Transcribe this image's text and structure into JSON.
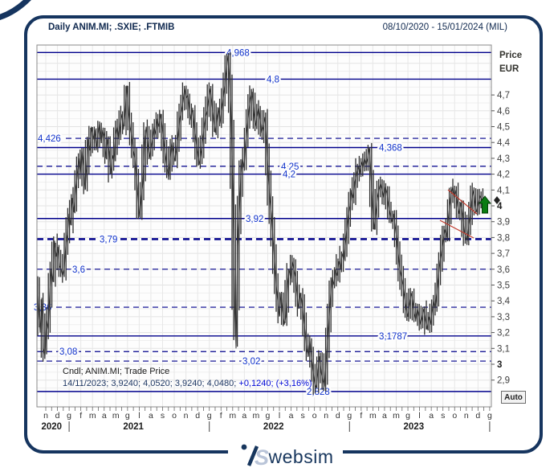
{
  "window": {
    "title": "Daily ANIM.MI; .SXIE; .FTMIB",
    "date_range": "08/10/2020 - 15/01/2024 (MIL)"
  },
  "axis": {
    "price_label": "Price",
    "currency_label": "EUR",
    "auto_label": "Auto"
  },
  "info": {
    "line1": "Cndl; ANIM.MI; Trade Price",
    "line2_main": "14/11/2023; 3,9240; 4,0520; 3,9240; 4,0480;",
    "line2_change": "+0,1240; (+3,16%)"
  },
  "footer": {
    "brand": "websim"
  },
  "colors": {
    "frame": "#16355f",
    "level_line": "#00008b",
    "level_label": "#1133cc",
    "candle": "#2e2e2e",
    "change_text": "#0008d7",
    "trend_line": "#c0392b",
    "signal_arrow": "#0b7c12"
  },
  "chart_data": {
    "type": "candlestick",
    "title": "Daily ANIM.MI; .SXIE; .FTMIB",
    "instrument": "ANIM.MI",
    "series_style": "Cndl",
    "price_field": "Trade Price",
    "period": "Daily",
    "date_range": "08/10/2020 - 15/01/2024",
    "exchange": "MIL",
    "ylabel": "Price EUR",
    "ylim": [
      2.82,
      4.99
    ],
    "grid": true,
    "ohlc_snapshot": {
      "date": "14/11/2023",
      "open": "3,9240",
      "high": "4,0520",
      "low": "3,9240",
      "close": "4,0480",
      "change": "+0,1240",
      "change_pct": "+3,16%"
    },
    "levels": [
      {
        "label": "4,968",
        "value": 4.968,
        "style": "solid",
        "label_x": 282
      },
      {
        "label": "4,8",
        "value": 4.8,
        "style": "solid",
        "label_x": 332
      },
      {
        "label": "4,426",
        "value": 4.426,
        "style": "dashed",
        "label_x": 47
      },
      {
        "label": "4,368",
        "value": 4.368,
        "style": "solid",
        "label_x": 472
      },
      {
        "label": "4,25",
        "value": 4.25,
        "style": "dashed",
        "label_x": 350
      },
      {
        "label": "4,2",
        "value": 4.2,
        "style": "solid",
        "label_x": 352
      },
      {
        "label": "3,92",
        "value": 3.92,
        "style": "solid",
        "label_x": 306
      },
      {
        "label": "3,79",
        "value": 3.79,
        "style": "dashed-bold",
        "label_x": 124
      },
      {
        "label": "3,6",
        "value": 3.6,
        "style": "dashed",
        "label_x": 90
      },
      {
        "label": "3,36",
        "value": 3.36,
        "style": "dashed",
        "label_x": 42
      },
      {
        "label": "3,1787",
        "value": 3.1787,
        "style": "solid",
        "label_x": 472
      },
      {
        "label": "3,08",
        "value": 3.08,
        "style": "dashed",
        "label_x": 74
      },
      {
        "label": "3,02",
        "value": 3.02,
        "style": "dashed",
        "label_x": 302
      },
      {
        "label": "2,828",
        "value": 2.828,
        "style": "solid",
        "label_x": 382
      }
    ],
    "y_axis": {
      "ticks": [
        "4,7",
        "4,6",
        "4,5",
        "4,4",
        "4,3",
        "4,2",
        "4,1",
        "4",
        "3,9",
        "3,8",
        "3,7",
        "3,6",
        "3,5",
        "3,4",
        "3,3",
        "3,2",
        "3,1",
        "3",
        "2,9"
      ]
    },
    "x_axis": {
      "months": [
        "n",
        "d",
        "g",
        "f",
        "m",
        "a",
        "m",
        "g",
        "l",
        "a",
        "s",
        "o",
        "n",
        "d",
        "g",
        "f",
        "m",
        "a",
        "m",
        "g",
        "l",
        "a",
        "s",
        "o",
        "n",
        "d",
        "g",
        "f",
        "m",
        "a",
        "m",
        "g",
        "l",
        "a",
        "s",
        "o",
        "n",
        "d",
        "g"
      ],
      "years": [
        {
          "label": "2020",
          "center_index": 0.5
        },
        {
          "label": "2021",
          "center_index": 7.5
        },
        {
          "label": "2022",
          "center_index": 19.5
        },
        {
          "label": "2023",
          "center_index": 31.5
        }
      ],
      "separator_indexes": [
        2,
        14,
        26,
        38
      ]
    },
    "annotations": {
      "trend_lines": [
        {
          "x1": 558,
          "y1": 236,
          "x2": 594,
          "y2": 266
        },
        {
          "x1": 548,
          "y1": 274,
          "x2": 590,
          "y2": 296
        }
      ],
      "signal_arrow": {
        "direction": "up",
        "x": 604,
        "y": 244
      },
      "last_price_marker": {
        "shape": "diamond",
        "x": 619,
        "y": 249
      }
    },
    "price_path": [
      [
        46,
        3.52
      ],
      [
        48,
        3.35
      ],
      [
        50,
        3.2
      ],
      [
        52,
        3.42
      ],
      [
        54,
        3.1
      ],
      [
        56,
        3.05
      ],
      [
        58,
        3.28
      ],
      [
        60,
        3.22
      ],
      [
        62,
        3.45
      ],
      [
        64,
        3.6
      ],
      [
        66,
        3.52
      ],
      [
        68,
        3.78
      ],
      [
        70,
        3.68
      ],
      [
        72,
        3.74
      ],
      [
        74,
        3.62
      ],
      [
        76,
        3.6
      ],
      [
        78,
        3.56
      ],
      [
        80,
        3.6
      ],
      [
        82,
        3.75
      ],
      [
        84,
        3.82
      ],
      [
        86,
        3.95
      ],
      [
        88,
        3.88
      ],
      [
        90,
        4.05
      ],
      [
        92,
        3.96
      ],
      [
        94,
        4.1
      ],
      [
        96,
        4.18
      ],
      [
        98,
        4.3
      ],
      [
        100,
        4.2
      ],
      [
        102,
        4.35
      ],
      [
        104,
        4.25
      ],
      [
        106,
        4.1
      ],
      [
        108,
        4.26
      ],
      [
        110,
        4.42
      ],
      [
        112,
        4.35
      ],
      [
        114,
        4.5
      ],
      [
        116,
        4.42
      ],
      [
        118,
        4.48
      ],
      [
        120,
        4.36
      ],
      [
        122,
        4.45
      ],
      [
        124,
        4.52
      ],
      [
        126,
        4.4
      ],
      [
        128,
        4.48
      ],
      [
        130,
        4.44
      ],
      [
        132,
        4.3
      ],
      [
        134,
        4.42
      ],
      [
        136,
        4.34
      ],
      [
        138,
        4.2
      ],
      [
        140,
        4.32
      ],
      [
        142,
        4.28
      ],
      [
        144,
        4.45
      ],
      [
        146,
        4.5
      ],
      [
        148,
        4.42
      ],
      [
        150,
        4.52
      ],
      [
        152,
        4.58
      ],
      [
        154,
        4.48
      ],
      [
        156,
        4.6
      ],
      [
        158,
        4.76
      ],
      [
        160,
        4.6
      ],
      [
        162,
        4.5
      ],
      [
        164,
        4.44
      ],
      [
        166,
        4.35
      ],
      [
        168,
        4.3
      ],
      [
        170,
        4.18
      ],
      [
        172,
        4.04
      ],
      [
        174,
        3.93
      ],
      [
        176,
        4.05
      ],
      [
        178,
        4.15
      ],
      [
        180,
        4.4
      ],
      [
        182,
        4.5
      ],
      [
        184,
        4.4
      ],
      [
        186,
        4.3
      ],
      [
        188,
        4.36
      ],
      [
        190,
        4.42
      ],
      [
        192,
        4.5
      ],
      [
        194,
        4.45
      ],
      [
        196,
        4.55
      ],
      [
        198,
        4.5
      ],
      [
        200,
        4.58
      ],
      [
        202,
        4.5
      ],
      [
        204,
        4.4
      ],
      [
        206,
        4.32
      ],
      [
        208,
        4.24
      ],
      [
        210,
        4.18
      ],
      [
        212,
        4.3
      ],
      [
        214,
        4.4
      ],
      [
        216,
        4.34
      ],
      [
        218,
        4.28
      ],
      [
        220,
        4.36
      ],
      [
        222,
        4.45
      ],
      [
        224,
        4.55
      ],
      [
        226,
        4.6
      ],
      [
        228,
        4.66
      ],
      [
        230,
        4.74
      ],
      [
        232,
        4.68
      ],
      [
        234,
        4.7
      ],
      [
        236,
        4.6
      ],
      [
        238,
        4.54
      ],
      [
        240,
        4.62
      ],
      [
        242,
        4.5
      ],
      [
        244,
        4.42
      ],
      [
        246,
        4.34
      ],
      [
        248,
        4.26
      ],
      [
        250,
        4.32
      ],
      [
        252,
        4.4
      ],
      [
        254,
        4.48
      ],
      [
        256,
        4.56
      ],
      [
        258,
        4.6
      ],
      [
        260,
        4.68
      ],
      [
        262,
        4.74
      ],
      [
        264,
        4.64
      ],
      [
        266,
        4.55
      ],
      [
        268,
        4.46
      ],
      [
        270,
        4.55
      ],
      [
        272,
        4.62
      ],
      [
        274,
        4.52
      ],
      [
        276,
        4.6
      ],
      [
        278,
        4.68
      ],
      [
        280,
        4.76
      ],
      [
        282,
        4.86
      ],
      [
        284,
        4.95
      ],
      [
        286,
        4.8
      ],
      [
        288,
        4.55
      ],
      [
        290,
        4.1
      ],
      [
        292,
        3.4
      ],
      [
        294,
        3.1
      ],
      [
        296,
        3.75
      ],
      [
        298,
        3.95
      ],
      [
        300,
        4.2
      ],
      [
        302,
        4.3
      ],
      [
        304,
        4.24
      ],
      [
        306,
        4.4
      ],
      [
        308,
        4.5
      ],
      [
        310,
        4.6
      ],
      [
        312,
        4.68
      ],
      [
        314,
        4.72
      ],
      [
        316,
        4.6
      ],
      [
        318,
        4.5
      ],
      [
        320,
        4.56
      ],
      [
        322,
        4.62
      ],
      [
        324,
        4.54
      ],
      [
        326,
        4.46
      ],
      [
        328,
        4.5
      ],
      [
        330,
        4.56
      ],
      [
        332,
        4.4
      ],
      [
        334,
        4.2
      ],
      [
        336,
        4.05
      ],
      [
        338,
        3.95
      ],
      [
        340,
        3.8
      ],
      [
        342,
        3.65
      ],
      [
        344,
        3.5
      ],
      [
        346,
        3.4
      ],
      [
        348,
        3.3
      ],
      [
        350,
        3.45
      ],
      [
        352,
        3.34
      ],
      [
        354,
        3.25
      ],
      [
        356,
        3.3
      ],
      [
        358,
        3.5
      ],
      [
        360,
        3.6
      ],
      [
        362,
        3.54
      ],
      [
        364,
        3.65
      ],
      [
        366,
        3.6
      ],
      [
        368,
        3.55
      ],
      [
        370,
        3.44
      ],
      [
        372,
        3.35
      ],
      [
        374,
        3.45
      ],
      [
        376,
        3.4
      ],
      [
        378,
        3.3
      ],
      [
        380,
        3.2
      ],
      [
        382,
        3.1
      ],
      [
        384,
        3.05
      ],
      [
        386,
        3.15
      ],
      [
        388,
        3.04
      ],
      [
        390,
        2.95
      ],
      [
        392,
        2.88
      ],
      [
        394,
        2.85
      ],
      [
        396,
        2.96
      ],
      [
        398,
        3.05
      ],
      [
        400,
        2.95
      ],
      [
        402,
        2.9
      ],
      [
        404,
        2.86
      ],
      [
        406,
        3.0
      ],
      [
        408,
        3.15
      ],
      [
        410,
        3.3
      ],
      [
        412,
        3.45
      ],
      [
        414,
        3.55
      ],
      [
        416,
        3.5
      ],
      [
        418,
        3.6
      ],
      [
        420,
        3.56
      ],
      [
        422,
        3.65
      ],
      [
        424,
        3.6
      ],
      [
        426,
        3.7
      ],
      [
        428,
        3.66
      ],
      [
        430,
        3.75
      ],
      [
        432,
        3.85
      ],
      [
        434,
        3.95
      ],
      [
        436,
        4.0
      ],
      [
        438,
        4.1
      ],
      [
        440,
        4.05
      ],
      [
        442,
        4.15
      ],
      [
        444,
        4.2
      ],
      [
        446,
        4.25
      ],
      [
        448,
        4.2
      ],
      [
        450,
        4.28
      ],
      [
        452,
        4.24
      ],
      [
        454,
        4.3
      ],
      [
        456,
        4.26
      ],
      [
        458,
        4.3
      ],
      [
        460,
        4.37
      ],
      [
        462,
        4.2
      ],
      [
        464,
        4.0
      ],
      [
        466,
        3.85
      ],
      [
        468,
        3.95
      ],
      [
        470,
        4.05
      ],
      [
        472,
        4.1
      ],
      [
        474,
        4.14
      ],
      [
        476,
        4.1
      ],
      [
        478,
        4.05
      ],
      [
        480,
        4.12
      ],
      [
        482,
        4.08
      ],
      [
        484,
        4.0
      ],
      [
        486,
        3.95
      ],
      [
        488,
        3.9
      ],
      [
        490,
        3.95
      ],
      [
        492,
        3.88
      ],
      [
        494,
        3.8
      ],
      [
        496,
        3.7
      ],
      [
        498,
        3.6
      ],
      [
        500,
        3.55
      ],
      [
        502,
        3.5
      ],
      [
        504,
        3.42
      ],
      [
        506,
        3.35
      ],
      [
        508,
        3.3
      ],
      [
        510,
        3.38
      ],
      [
        512,
        3.45
      ],
      [
        514,
        3.4
      ],
      [
        516,
        3.32
      ],
      [
        518,
        3.28
      ],
      [
        520,
        3.35
      ],
      [
        522,
        3.3
      ],
      [
        524,
        3.25
      ],
      [
        526,
        3.3
      ],
      [
        528,
        3.35
      ],
      [
        530,
        3.28
      ],
      [
        532,
        3.22
      ],
      [
        534,
        3.3
      ],
      [
        536,
        3.25
      ],
      [
        538,
        3.32
      ],
      [
        540,
        3.4
      ],
      [
        542,
        3.35
      ],
      [
        544,
        3.45
      ],
      [
        546,
        3.55
      ],
      [
        548,
        3.65
      ],
      [
        550,
        3.7
      ],
      [
        552,
        3.78
      ],
      [
        554,
        3.85
      ],
      [
        556,
        3.8
      ],
      [
        558,
        3.9
      ],
      [
        560,
        4.0
      ],
      [
        562,
        4.08
      ],
      [
        564,
        4.12
      ],
      [
        566,
        4.05
      ],
      [
        568,
        4.1
      ],
      [
        570,
        4.0
      ],
      [
        572,
        3.95
      ],
      [
        574,
        4.02
      ],
      [
        576,
        3.95
      ],
      [
        578,
        3.85
      ],
      [
        580,
        3.8
      ],
      [
        582,
        3.78
      ],
      [
        584,
        3.88
      ],
      [
        586,
        3.95
      ],
      [
        588,
        4.05
      ],
      [
        590,
        4.1
      ],
      [
        592,
        4.0
      ],
      [
        594,
        3.96
      ],
      [
        596,
        4.02
      ],
      [
        598,
        4.06
      ],
      [
        600,
        4.04
      ],
      [
        602,
        4.05
      ]
    ]
  }
}
